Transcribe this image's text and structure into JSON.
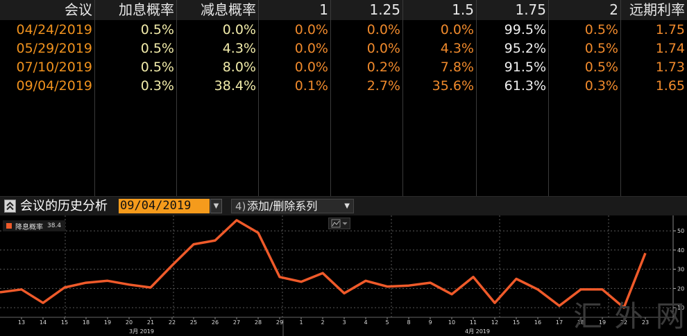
{
  "table": {
    "headers": [
      "会议",
      "加息概率",
      "减息概率",
      "1",
      "1.25",
      "1.5",
      "1.75",
      "2",
      "远期利率"
    ],
    "rows": [
      [
        "04/24/2019",
        "0.5%",
        "0.0%",
        "0.0%",
        "0.0%",
        "0.0%",
        "99.5%",
        "0.5%",
        "1.75"
      ],
      [
        "05/29/2019",
        "0.5%",
        "4.3%",
        "0.0%",
        "0.0%",
        "4.3%",
        "95.2%",
        "0.5%",
        "1.74"
      ],
      [
        "07/10/2019",
        "0.5%",
        "8.0%",
        "0.0%",
        "0.2%",
        "7.8%",
        "91.5%",
        "0.5%",
        "1.73"
      ],
      [
        "09/04/2019",
        "0.3%",
        "38.4%",
        "0.1%",
        "2.7%",
        "35.6%",
        "61.3%",
        "0.3%",
        "1.65"
      ]
    ]
  },
  "toolbar": {
    "title": "会议的历史分析",
    "date_value": "09/04/2019",
    "add_remove_num": "4)",
    "add_remove_label": "添加/删除系列"
  },
  "chart_data": {
    "type": "line",
    "series": [
      {
        "name": "降息概率",
        "last_value": "38.4",
        "color": "#ef5a2a",
        "values": [
          18,
          19.5,
          12.5,
          20.5,
          23,
          24,
          22,
          20.5,
          32,
          43,
          45,
          55.5,
          49,
          26,
          23.5,
          28,
          17.5,
          24,
          21,
          21.5,
          23,
          17,
          26,
          12.5,
          25,
          19.5,
          11,
          19.5,
          19.5,
          10,
          38.4
        ]
      }
    ],
    "x_tick_labels": [
      "13",
      "14",
      "15",
      "18",
      "19",
      "20",
      "21",
      "22",
      "25",
      "26",
      "27",
      "28",
      "29",
      "1",
      "2",
      "3",
      "4",
      "5",
      "8",
      "9",
      "10",
      "11",
      "12",
      "15",
      "16",
      "17",
      "18",
      "19",
      "22",
      "23"
    ],
    "x_month_labels": [
      "3月 2019",
      "4月 2019"
    ],
    "y_ticks": [
      10,
      20,
      30,
      40,
      50
    ],
    "ylim": [
      5,
      58
    ],
    "grid": true
  },
  "watermark": "汇 外 网"
}
